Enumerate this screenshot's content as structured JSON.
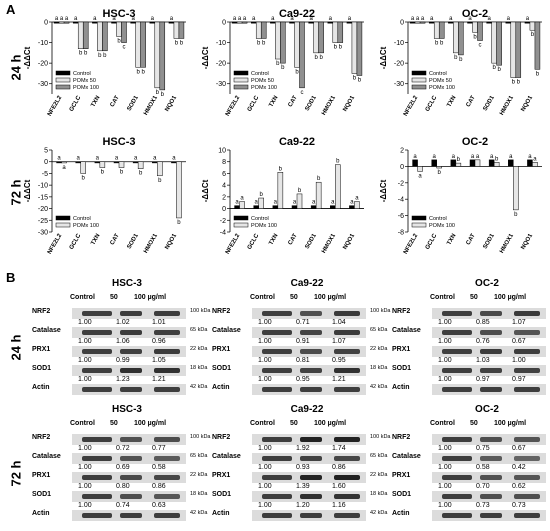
{
  "panel_letters": {
    "a": "A",
    "b": "B"
  },
  "row_labels": {
    "h24": "24 h",
    "h72": "72 h"
  },
  "chart_data": [
    {
      "type": "bar",
      "title": "HSC-3",
      "ylabel": "-ΔΔCt",
      "ylim": [
        -35,
        0
      ],
      "yticks": [
        0,
        -10,
        -20,
        -30
      ],
      "categories": [
        "NFE2L2",
        "GCLC",
        "TXN",
        "CAT",
        "SOD1",
        "HMOX1",
        "NQO1"
      ],
      "series": [
        {
          "name": "Control",
          "values": [
            0,
            0,
            0,
            0,
            0,
            0,
            0
          ],
          "color": "#000000"
        },
        {
          "name": "POMx 50",
          "values": [
            0,
            -13,
            -14,
            -7,
            -22,
            -32,
            -8
          ],
          "color": "#e6e6e6"
        },
        {
          "name": "POMx 100",
          "values": [
            0,
            -13,
            -14,
            -10,
            -22,
            -33,
            -8
          ],
          "color": "#909090"
        }
      ],
      "letters": [
        [
          "a",
          "a",
          "a"
        ],
        [
          "a",
          "b",
          "b"
        ],
        [
          "a",
          "b",
          "b"
        ],
        [
          "a",
          "b",
          "c"
        ],
        [
          "a",
          "b",
          "b"
        ],
        [
          "a",
          "b",
          "b"
        ],
        [
          "a",
          "b",
          "b"
        ]
      ],
      "legend": "bottom-left"
    },
    {
      "type": "bar",
      "title": "Ca9-22",
      "ylabel": "-ΔΔCt",
      "ylim": [
        -35,
        0
      ],
      "yticks": [
        0,
        -10,
        -20,
        -30
      ],
      "categories": [
        "NFE2L2",
        "GCLC",
        "TXN",
        "CAT",
        "SOD1",
        "HMOX1",
        "NQO1"
      ],
      "series": [
        {
          "name": "Control",
          "values": [
            0,
            0,
            0,
            0,
            0,
            0,
            0
          ],
          "color": "#000000"
        },
        {
          "name": "POMx 50",
          "values": [
            0,
            -8,
            -18,
            -22,
            -15,
            -10,
            -25
          ],
          "color": "#e6e6e6"
        },
        {
          "name": "POMx 100",
          "values": [
            0,
            -8,
            -20,
            -32,
            -15,
            -10,
            -26
          ],
          "color": "#909090"
        }
      ],
      "letters": [
        [
          "a",
          "a",
          "a"
        ],
        [
          "a",
          "b",
          "b"
        ],
        [
          "a",
          "b",
          "b"
        ],
        [
          "a",
          "b",
          "c"
        ],
        [
          "a",
          "b",
          "b"
        ],
        [
          "a",
          "b",
          "b"
        ],
        [
          "a",
          "b",
          "b"
        ]
      ],
      "legend": "bottom-left"
    },
    {
      "type": "bar",
      "title": "OC-2",
      "ylabel": "-ΔΔCt",
      "ylim": [
        -35,
        0
      ],
      "yticks": [
        0,
        -10,
        -20,
        -30
      ],
      "categories": [
        "NFE2L2",
        "GCLC",
        "TXN",
        "CAT",
        "SOD1",
        "HMOX1",
        "NQO1"
      ],
      "series": [
        {
          "name": "Control",
          "values": [
            0,
            0,
            0,
            0,
            0,
            0,
            0
          ],
          "color": "#000000"
        },
        {
          "name": "POMx 50",
          "values": [
            0,
            -8,
            -15,
            -5,
            -20,
            -27,
            -4
          ],
          "color": "#e6e6e6"
        },
        {
          "name": "POMx 100",
          "values": [
            0,
            -8,
            -16,
            -9,
            -21,
            -27,
            -23
          ],
          "color": "#909090"
        }
      ],
      "letters": [
        [
          "a",
          "a",
          "a"
        ],
        [
          "a",
          "b",
          "b"
        ],
        [
          "a",
          "b",
          "b"
        ],
        [
          "a",
          "b",
          "c"
        ],
        [
          "a",
          "b",
          "b"
        ],
        [
          "a",
          "b",
          "b"
        ],
        [
          "a",
          "b",
          "b"
        ]
      ],
      "legend": "bottom-left"
    },
    {
      "type": "bar",
      "title": "HSC-3",
      "ylabel": "-ΔΔCt",
      "ylim": [
        -30,
        5
      ],
      "yticks": [
        5,
        0,
        -5,
        -10,
        -15,
        -20,
        -25,
        -30
      ],
      "categories": [
        "NFE2L2",
        "GCLC",
        "TXN",
        "CAT",
        "SOD1",
        "HMOX1",
        "NQO1"
      ],
      "series": [
        {
          "name": "Control",
          "values": [
            0,
            0,
            0,
            0,
            0,
            0,
            0
          ],
          "color": "#000000"
        },
        {
          "name": "POMx 100",
          "values": [
            -0.5,
            -5,
            -2.5,
            -2.5,
            -3,
            -6,
            -24
          ],
          "color": "#e6e6e6"
        }
      ],
      "letters": [
        [
          "a",
          "a"
        ],
        [
          "a",
          "b"
        ],
        [
          "a",
          "b"
        ],
        [
          "a",
          "b"
        ],
        [
          "a",
          "b"
        ],
        [
          "a",
          "b"
        ],
        [
          "a",
          "b"
        ]
      ],
      "legend": "bottom-left"
    },
    {
      "type": "bar",
      "title": "Ca9-22",
      "ylabel": "-ΔΔCt",
      "ylim": [
        -4,
        10
      ],
      "yticks": [
        10,
        8,
        6,
        4,
        2,
        0,
        -2,
        -4
      ],
      "categories": [
        "NFE2L2",
        "GCLC",
        "TXN",
        "CAT",
        "SOD1",
        "HMOX1",
        "NQO1"
      ],
      "series": [
        {
          "name": "Control",
          "values": [
            0.5,
            0.5,
            0.5,
            0.5,
            0.5,
            0.5,
            0.5
          ],
          "color": "#000000"
        },
        {
          "name": "POMx 100",
          "values": [
            1.2,
            1.8,
            6.2,
            2.5,
            4.5,
            7.5,
            1.2
          ],
          "color": "#e6e6e6"
        }
      ],
      "letters": [
        [
          "a",
          "a"
        ],
        [
          "a",
          "b"
        ],
        [
          "a",
          "b"
        ],
        [
          "a",
          "b"
        ],
        [
          "a",
          "b"
        ],
        [
          "a",
          "b"
        ],
        [
          "a",
          "a"
        ]
      ],
      "legend": "bottom-left"
    },
    {
      "type": "bar",
      "title": "OC-2",
      "ylabel": "-ΔΔCt",
      "ylim": [
        -8,
        2
      ],
      "yticks": [
        2,
        0,
        -2,
        -4,
        -6,
        -8
      ],
      "categories": [
        "NFE2L2",
        "GCLC",
        "TXN",
        "CAT",
        "SOD1",
        "HMOX1",
        "NQO1"
      ],
      "series": [
        {
          "name": "Control",
          "values": [
            0.8,
            0.8,
            0.8,
            0.8,
            0.8,
            0.8,
            0.8
          ],
          "color": "#000000"
        },
        {
          "name": "POMx 100",
          "values": [
            -0.6,
            -0.2,
            0.4,
            0.8,
            0.5,
            -5.3,
            0.5
          ],
          "color": "#e6e6e6"
        }
      ],
      "letters": [
        [
          "a",
          "a"
        ],
        [
          "a",
          "b"
        ],
        [
          "a",
          "b"
        ],
        [
          "a",
          "a"
        ],
        [
          "a",
          "b"
        ],
        [
          "a",
          "b"
        ],
        [
          "a",
          "a"
        ]
      ],
      "legend": "bottom-left"
    }
  ],
  "blots": [
    {
      "title": "HSC-3",
      "headers": [
        "Control",
        "50",
        "100 µg/ml"
      ],
      "rows": [
        {
          "protein": "NRF2",
          "kda": "100 kDa",
          "q": [
            "1.00",
            "1.02",
            "1.01"
          ]
        },
        {
          "protein": "Catalase",
          "kda": "65 kDa",
          "q": [
            "1.00",
            "1.06",
            "0.96"
          ]
        },
        {
          "protein": "PRX1",
          "kda": "22 kDa",
          "q": [
            "1.00",
            "0.99",
            "1.05"
          ]
        },
        {
          "protein": "SOD1",
          "kda": "18 kDa",
          "q": [
            "1.00",
            "1.23",
            "1.21"
          ]
        },
        {
          "protein": "Actin",
          "kda": "42 kDa",
          "q": []
        }
      ]
    },
    {
      "title": "Ca9-22",
      "headers": [
        "Control",
        "50",
        "100 µg/ml"
      ],
      "rows": [
        {
          "protein": "NRF2",
          "kda": "100 kDa",
          "q": [
            "1.00",
            "0.71",
            "1.04"
          ]
        },
        {
          "protein": "Catalase",
          "kda": "65 kDa",
          "q": [
            "1.00",
            "0.91",
            "1.07"
          ]
        },
        {
          "protein": "PRX1",
          "kda": "22 kDa",
          "q": [
            "1.00",
            "0.81",
            "0.95"
          ]
        },
        {
          "protein": "SOD1",
          "kda": "18 kDa",
          "q": [
            "1.00",
            "0.95",
            "1.21"
          ]
        },
        {
          "protein": "Actin",
          "kda": "42 kDa",
          "q": []
        }
      ]
    },
    {
      "title": "OC-2",
      "headers": [
        "Control",
        "50",
        "100 µg/ml"
      ],
      "rows": [
        {
          "protein": "NRF2",
          "kda": "100 kDa",
          "q": [
            "1.00",
            "0.85",
            "1.07"
          ]
        },
        {
          "protein": "Catalase",
          "kda": "65 kDa",
          "q": [
            "1.00",
            "0.76",
            "0.67"
          ]
        },
        {
          "protein": "PRX1",
          "kda": "22 kDa",
          "q": [
            "1.00",
            "1.03",
            "1.00"
          ]
        },
        {
          "protein": "SOD1",
          "kda": "18 kDa",
          "q": [
            "1.00",
            "0.97",
            "0.97"
          ]
        },
        {
          "protein": "Actin",
          "kda": "42 kDa",
          "q": []
        }
      ]
    },
    {
      "title": "HSC-3",
      "headers": [
        "Control",
        "50",
        "100 µg/ml"
      ],
      "rows": [
        {
          "protein": "NRF2",
          "kda": "100 kDa",
          "q": [
            "1.00",
            "0.72",
            "0.77"
          ]
        },
        {
          "protein": "Catalase",
          "kda": "65 kDa",
          "q": [
            "1.00",
            "0.69",
            "0.58"
          ]
        },
        {
          "protein": "PRX1",
          "kda": "22 kDa",
          "q": [
            "1.00",
            "0.80",
            "0.86"
          ]
        },
        {
          "protein": "SOD1",
          "kda": "18 kDa",
          "q": [
            "1.00",
            "0.74",
            "0.63"
          ]
        },
        {
          "protein": "Actin",
          "kda": "42 kDa",
          "q": []
        }
      ]
    },
    {
      "title": "Ca9-22",
      "headers": [
        "Control",
        "50",
        "100 µg/ml"
      ],
      "rows": [
        {
          "protein": "NRF2",
          "kda": "100 kDa",
          "q": [
            "1.00",
            "1.92",
            "1.74"
          ]
        },
        {
          "protein": "Catalase",
          "kda": "65 kDa",
          "q": [
            "1.00",
            "0.93",
            "0.86"
          ]
        },
        {
          "protein": "PRX1",
          "kda": "22 kDa",
          "q": [
            "1.00",
            "1.39",
            "1.60"
          ]
        },
        {
          "protein": "SOD1",
          "kda": "18 kDa",
          "q": [
            "1.00",
            "1.20",
            "1.16"
          ]
        },
        {
          "protein": "Actin",
          "kda": "42 kDa",
          "q": []
        }
      ]
    },
    {
      "title": "OC-2",
      "headers": [
        "Control",
        "50",
        "100 µg/ml"
      ],
      "rows": [
        {
          "protein": "NRF2",
          "kda": "100 kDa",
          "q": [
            "1.00",
            "0.75",
            "0.67"
          ]
        },
        {
          "protein": "Catalase",
          "kda": "65 kDa",
          "q": [
            "1.00",
            "0.58",
            "0.42"
          ]
        },
        {
          "protein": "PRX1",
          "kda": "22 kDa",
          "q": [
            "1.00",
            "0.70",
            "0.62"
          ]
        },
        {
          "protein": "SOD1",
          "kda": "18 kDa",
          "q": [
            "1.00",
            "0.73",
            "0.73"
          ]
        },
        {
          "protein": "Actin",
          "kda": "42 kDa",
          "q": []
        }
      ]
    }
  ]
}
